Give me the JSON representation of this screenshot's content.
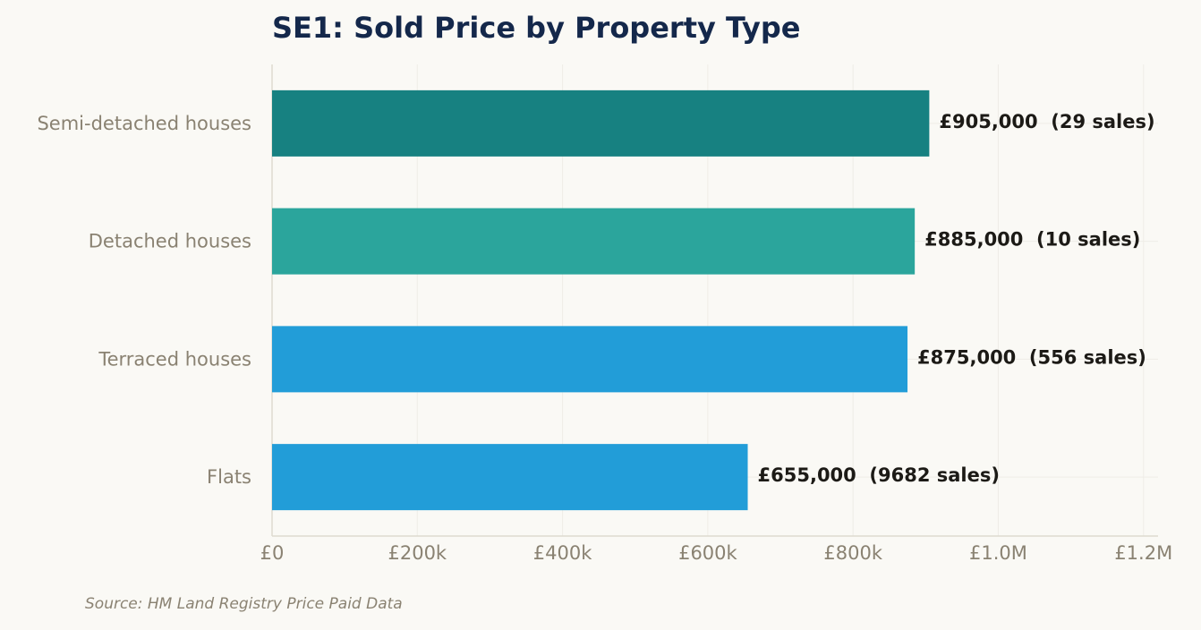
{
  "chart_data": {
    "type": "bar",
    "orientation": "horizontal",
    "title": "SE1: Sold Price by Property Type",
    "xlabel": "",
    "ylabel": "",
    "xlim": [
      0,
      1220000
    ],
    "grid": true,
    "legend": "none",
    "categories": [
      "Semi-detached houses",
      "Detached houses",
      "Terraced houses",
      "Flats"
    ],
    "values": [
      905000,
      885000,
      875000,
      655000
    ],
    "sales": [
      29,
      10,
      556,
      9682
    ],
    "data_labels": [
      "£905,000  (29 sales)",
      "£885,000  (10 sales)",
      "£875,000  (556 sales)",
      "£655,000  (9682 sales)"
    ],
    "bar_colors": [
      "#178181",
      "#2ba59c",
      "#229dd8",
      "#229dd8"
    ],
    "xticks": [
      {
        "value": 0,
        "label": "£0"
      },
      {
        "value": 200000,
        "label": "£200k"
      },
      {
        "value": 400000,
        "label": "£400k"
      },
      {
        "value": 600000,
        "label": "£600k"
      },
      {
        "value": 800000,
        "label": "£800k"
      },
      {
        "value": 1000000,
        "label": "£1.0M"
      },
      {
        "value": 1200000,
        "label": "£1.2M"
      }
    ]
  },
  "source": "Source: HM Land Registry Price Paid Data",
  "colors": {
    "background": "#faf9f5",
    "title": "#14284b",
    "tick_text": "#8a8272",
    "label_text": "#1c1a16",
    "grid": "#efede7",
    "axis": "#dedad0"
  }
}
